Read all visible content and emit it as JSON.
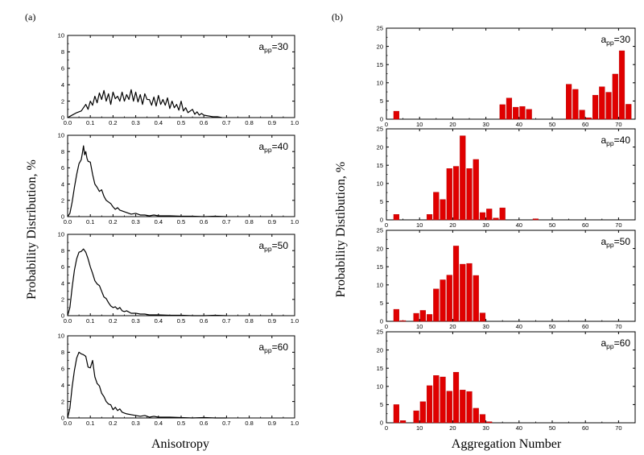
{
  "figure": {
    "panel_a_label": "(a)",
    "panel_b_label": "(b)",
    "left_ylabel": "Probability Distribution, %",
    "right_ylabel": "Probability Distibution, %",
    "left_xlabel": "Anisotropy",
    "right_xlabel": "Aggregation Number",
    "line_color": "#000000",
    "bar_color": "#e00000"
  },
  "chart_data": [
    {
      "type": "line",
      "panel": "a",
      "title_base": "a",
      "title_sub": "pp",
      "title_value": "=30",
      "xlim": [
        0,
        1.0
      ],
      "ylim": [
        0,
        10
      ],
      "xticks": [
        "0.0",
        "0.1",
        "0.2",
        "0.3",
        "0.4",
        "0.5",
        "0.6",
        "0.7",
        "0.8",
        "0.9",
        "1.0"
      ],
      "yticks": [
        "0",
        "2",
        "4",
        "6",
        "8",
        "10"
      ],
      "x": [
        0.0,
        0.02,
        0.04,
        0.06,
        0.08,
        0.09,
        0.1,
        0.11,
        0.12,
        0.13,
        0.14,
        0.15,
        0.16,
        0.17,
        0.18,
        0.19,
        0.2,
        0.21,
        0.22,
        0.23,
        0.24,
        0.25,
        0.26,
        0.27,
        0.28,
        0.29,
        0.3,
        0.31,
        0.32,
        0.33,
        0.34,
        0.35,
        0.36,
        0.37,
        0.38,
        0.39,
        0.4,
        0.41,
        0.42,
        0.43,
        0.44,
        0.45,
        0.46,
        0.47,
        0.48,
        0.49,
        0.5,
        0.51,
        0.52,
        0.53,
        0.54,
        0.55,
        0.56,
        0.57,
        0.58,
        0.59,
        0.6,
        0.62,
        0.64,
        0.66,
        0.68
      ],
      "y": [
        0.0,
        0.3,
        0.6,
        0.8,
        1.6,
        1.0,
        2.0,
        1.5,
        2.6,
        1.8,
        3.0,
        2.2,
        3.3,
        2.0,
        2.9,
        1.6,
        3.1,
        2.3,
        2.6,
        2.0,
        3.1,
        2.0,
        2.8,
        2.2,
        3.4,
        2.0,
        3.1,
        1.9,
        2.8,
        1.6,
        2.9,
        2.2,
        2.2,
        1.5,
        2.5,
        1.4,
        2.7,
        1.6,
        2.2,
        1.5,
        2.4,
        1.1,
        2.0,
        1.2,
        1.6,
        0.9,
        2.0,
        0.8,
        1.2,
        0.6,
        0.8,
        1.0,
        0.4,
        0.7,
        0.3,
        0.5,
        0.3,
        0.2,
        0.1,
        0.1,
        0.0
      ]
    },
    {
      "type": "line",
      "panel": "a",
      "title_base": "a",
      "title_sub": "pp",
      "title_value": "=40",
      "xlim": [
        0,
        1.0
      ],
      "ylim": [
        0,
        10
      ],
      "xticks": [
        "0.0",
        "0.1",
        "0.2",
        "0.3",
        "0.4",
        "0.5",
        "0.6",
        "0.7",
        "0.8",
        "0.9",
        "1.0"
      ],
      "yticks": [
        "0",
        "2",
        "4",
        "6",
        "8",
        "10"
      ],
      "x": [
        0.0,
        0.01,
        0.02,
        0.03,
        0.04,
        0.05,
        0.06,
        0.065,
        0.07,
        0.075,
        0.08,
        0.085,
        0.09,
        0.1,
        0.11,
        0.12,
        0.13,
        0.14,
        0.15,
        0.16,
        0.17,
        0.18,
        0.19,
        0.2,
        0.21,
        0.22,
        0.23,
        0.24,
        0.25,
        0.26,
        0.28,
        0.3,
        0.32,
        0.34,
        0.36,
        0.38,
        0.4,
        0.45,
        0.5,
        0.55,
        0.6,
        0.65,
        0.7
      ],
      "y": [
        0.0,
        0.4,
        1.8,
        3.6,
        5.2,
        6.5,
        7.0,
        7.8,
        8.7,
        7.6,
        8.0,
        7.2,
        6.8,
        6.7,
        5.2,
        4.0,
        3.6,
        3.1,
        3.3,
        2.5,
        2.0,
        1.8,
        1.6,
        1.2,
        0.9,
        1.1,
        0.8,
        0.7,
        0.6,
        0.5,
        0.3,
        0.4,
        0.2,
        0.2,
        0.1,
        0.2,
        0.1,
        0.1,
        0.05,
        0.05,
        0.0,
        0.05,
        0.0
      ]
    },
    {
      "type": "line",
      "panel": "a",
      "title_base": "a",
      "title_sub": "pp",
      "title_value": "=50",
      "xlim": [
        0,
        1.0
      ],
      "ylim": [
        0,
        10
      ],
      "xticks": [
        "0.0",
        "0.1",
        "0.2",
        "0.3",
        "0.4",
        "0.5",
        "0.6",
        "0.7",
        "0.8",
        "0.9",
        "1.0"
      ],
      "yticks": [
        "0",
        "2",
        "4",
        "6",
        "8",
        "10"
      ],
      "x": [
        0.0,
        0.01,
        0.02,
        0.03,
        0.04,
        0.05,
        0.06,
        0.07,
        0.08,
        0.09,
        0.1,
        0.11,
        0.12,
        0.13,
        0.14,
        0.15,
        0.16,
        0.17,
        0.18,
        0.19,
        0.2,
        0.21,
        0.22,
        0.23,
        0.24,
        0.25,
        0.26,
        0.28,
        0.3,
        0.32,
        0.34,
        0.36,
        0.38,
        0.4,
        0.45,
        0.5,
        0.55,
        0.6,
        0.65,
        0.7
      ],
      "y": [
        0.0,
        1.0,
        3.5,
        5.6,
        7.0,
        7.8,
        7.9,
        8.2,
        7.8,
        7.0,
        6.0,
        5.2,
        4.3,
        3.9,
        3.7,
        3.0,
        2.3,
        2.1,
        1.6,
        1.2,
        1.0,
        1.1,
        0.8,
        1.0,
        0.6,
        0.5,
        0.6,
        0.3,
        0.3,
        0.2,
        0.2,
        0.1,
        0.1,
        0.1,
        0.05,
        0.05,
        0.0,
        0.0,
        0.05,
        0.0
      ]
    },
    {
      "type": "line",
      "panel": "a",
      "title_base": "a",
      "title_sub": "pp",
      "title_value": "=60",
      "xlim": [
        0,
        1.0
      ],
      "ylim": [
        0,
        10
      ],
      "xticks": [
        "0.0",
        "0.1",
        "0.2",
        "0.3",
        "0.4",
        "0.5",
        "0.6",
        "0.7",
        "0.8",
        "0.9",
        "1.0"
      ],
      "yticks": [
        "0",
        "2",
        "4",
        "6",
        "8",
        "10"
      ],
      "x": [
        0.0,
        0.01,
        0.02,
        0.03,
        0.04,
        0.05,
        0.06,
        0.07,
        0.08,
        0.09,
        0.1,
        0.11,
        0.12,
        0.13,
        0.14,
        0.15,
        0.16,
        0.17,
        0.18,
        0.19,
        0.2,
        0.21,
        0.22,
        0.23,
        0.24,
        0.25,
        0.26,
        0.28,
        0.3,
        0.32,
        0.34,
        0.36,
        0.38,
        0.4,
        0.45,
        0.5,
        0.55,
        0.6,
        0.65,
        0.7
      ],
      "y": [
        0.0,
        1.2,
        3.8,
        5.8,
        7.3,
        8.0,
        7.8,
        7.7,
        7.5,
        6.2,
        6.1,
        7.0,
        5.0,
        4.2,
        3.9,
        3.0,
        2.6,
        2.0,
        1.7,
        1.6,
        1.0,
        1.3,
        0.9,
        1.1,
        0.7,
        0.6,
        0.5,
        0.4,
        0.3,
        0.2,
        0.3,
        0.1,
        0.2,
        0.1,
        0.1,
        0.05,
        0.0,
        0.05,
        0.0,
        0.0
      ]
    },
    {
      "type": "bar",
      "panel": "b",
      "title_base": "a",
      "title_sub": "pp",
      "title_value": "=30",
      "xlim": [
        0,
        75
      ],
      "ylim": [
        0,
        25
      ],
      "xticks": [
        "0",
        "10",
        "20",
        "30",
        "40",
        "50",
        "60",
        "70"
      ],
      "yticks": [
        "0",
        "5",
        "10",
        "15",
        "20",
        "25"
      ],
      "x": [
        3,
        35,
        37,
        39,
        41,
        43,
        55,
        57,
        59,
        61,
        63,
        65,
        67,
        69,
        71,
        73
      ],
      "values": [
        2.2,
        4.0,
        5.8,
        3.3,
        3.5,
        2.7,
        9.6,
        8.2,
        2.5,
        0.4,
        6.6,
        8.9,
        7.4,
        12.4,
        18.8,
        4.1
      ]
    },
    {
      "type": "bar",
      "panel": "b",
      "title_base": "a",
      "title_sub": "pp",
      "title_value": "=40",
      "xlim": [
        0,
        75
      ],
      "ylim": [
        0,
        25
      ],
      "xticks": [
        "0",
        "10",
        "20",
        "30",
        "40",
        "50",
        "60",
        "70"
      ],
      "yticks": [
        "0",
        "5",
        "10",
        "15",
        "20",
        "25"
      ],
      "x": [
        3,
        13,
        15,
        17,
        19,
        21,
        23,
        25,
        27,
        29,
        31,
        33,
        35,
        45
      ],
      "values": [
        1.5,
        1.5,
        7.6,
        5.6,
        14.1,
        14.7,
        23.1,
        14.1,
        16.6,
        2.0,
        3.0,
        0.5,
        3.3,
        0.3
      ]
    },
    {
      "type": "bar",
      "panel": "b",
      "title_base": "a",
      "title_sub": "pp",
      "title_value": "=50",
      "xlim": [
        0,
        75
      ],
      "ylim": [
        0,
        25
      ],
      "xticks": [
        "0",
        "10",
        "20",
        "30",
        "40",
        "50",
        "60",
        "70"
      ],
      "yticks": [
        "0",
        "5",
        "10",
        "15",
        "20",
        "25"
      ],
      "x": [
        3,
        5,
        9,
        11,
        13,
        15,
        17,
        19,
        21,
        23,
        25,
        27,
        29
      ],
      "values": [
        3.3,
        0.2,
        2.2,
        3.0,
        1.9,
        8.9,
        11.4,
        12.7,
        20.7,
        15.7,
        15.9,
        12.6,
        2.3
      ]
    },
    {
      "type": "bar",
      "panel": "b",
      "title_base": "a",
      "title_sub": "pp",
      "title_value": "=60",
      "xlim": [
        0,
        75
      ],
      "ylim": [
        0,
        25
      ],
      "xticks": [
        "0",
        "10",
        "20",
        "30",
        "40",
        "50",
        "60",
        "70"
      ],
      "yticks": [
        "0",
        "5",
        "10",
        "15",
        "20",
        "25"
      ],
      "x": [
        3,
        5,
        9,
        11,
        13,
        15,
        17,
        19,
        21,
        23,
        25,
        27,
        29,
        31
      ],
      "values": [
        5.0,
        0.6,
        3.3,
        5.8,
        10.2,
        13.0,
        12.6,
        8.7,
        13.9,
        9.0,
        8.6,
        4.0,
        2.3,
        0.3
      ]
    }
  ]
}
